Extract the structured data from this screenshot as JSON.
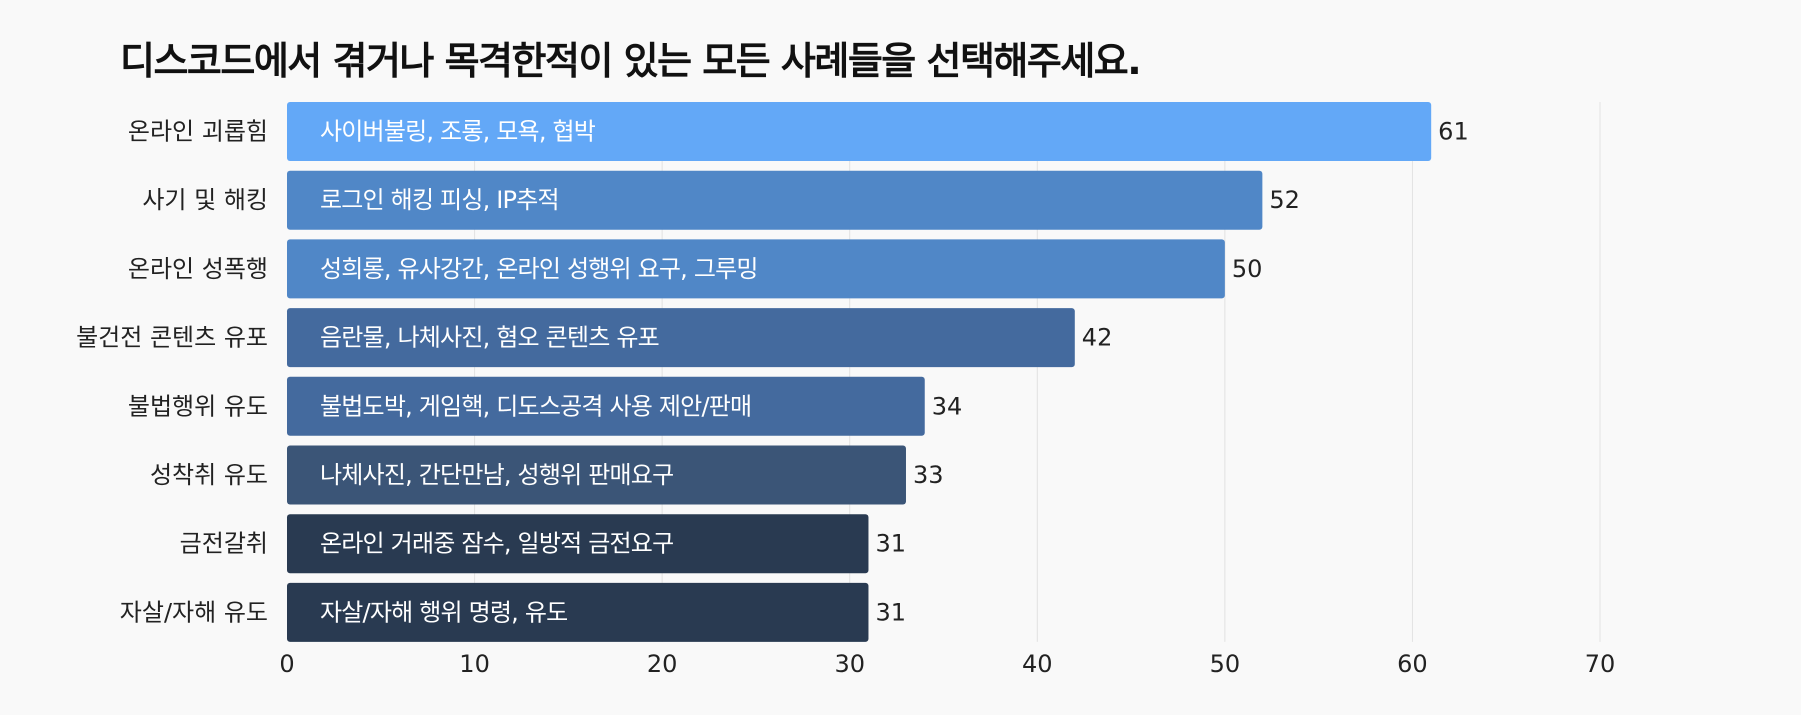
{
  "chart_data": {
    "type": "bar",
    "orientation": "horizontal",
    "title": "디스코드에서 겪거나 목격한적이 있는 모든 사례들을 선택해주세요.",
    "xlabel": "",
    "ylabel": "",
    "xlim": [
      0,
      70
    ],
    "xticks": [
      0,
      10,
      20,
      30,
      40,
      50,
      60,
      70
    ],
    "grid": "vertical",
    "legend": "none",
    "categories": [
      "온라인 괴롭힘",
      "사기 및 해킹",
      "온라인 성폭행",
      "불건전 콘텐츠 유포",
      "불법행위 유도",
      "성착취 유도",
      "금전갈취",
      "자살/자해 유도"
    ],
    "values": [
      61,
      52,
      50,
      42,
      34,
      33,
      31,
      31
    ],
    "annotations": [
      "사이버불링, 조롱, 모욕, 협박",
      "로그인 해킹 피싱, IP추적",
      "성희롱, 유사강간, 온라인 성행위 요구, 그루밍",
      "음란물, 나체사진, 혐오 콘텐츠 유포",
      "불법도박, 게임핵, 디도스공격 사용 제안/판매",
      "나체사진, 간단만남, 성행위 판매요구",
      "온라인 거래중 잠수, 일방적 금전요구",
      "자살/자해 행위 명령, 유도"
    ],
    "colors": [
      "#63a8f7",
      "#5087c7",
      "#5087c7",
      "#446a9e",
      "#446a9e",
      "#3b5577",
      "#293a51",
      "#293a51"
    ]
  }
}
